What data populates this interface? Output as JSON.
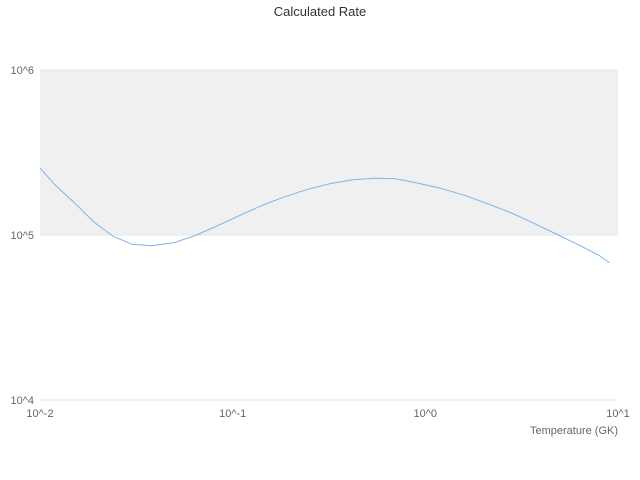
{
  "chart_data": {
    "type": "line",
    "title": "Calculated Rate",
    "xlabel": "Temperature (GK)",
    "ylabel": "",
    "xscale": "log",
    "yscale": "log",
    "xlim": [
      0.01,
      10
    ],
    "ylim": [
      10000,
      1000000
    ],
    "grid": "horizontal-only",
    "legend": "off",
    "background_color": "#ffffff",
    "gridline_color": "#e6e6e6",
    "xticks": [
      {
        "value": 0.01,
        "label": "10^-2"
      },
      {
        "value": 0.1,
        "label": "10^-1"
      },
      {
        "value": 1,
        "label": "10^0"
      },
      {
        "value": 10,
        "label": "10^1"
      }
    ],
    "yticks": [
      {
        "value": 10000,
        "label": "10^4"
      },
      {
        "value": 100000,
        "label": "10^5"
      },
      {
        "value": 1000000,
        "label": "10^6"
      }
    ],
    "plot_band": {
      "from": 100000,
      "to": 1000000,
      "color": "#f0f0f0"
    },
    "series": [
      {
        "name": "Calculated Rate",
        "color": "#7cb5ec",
        "points": [
          [
            0.01,
            255000
          ],
          [
            0.012,
            200000
          ],
          [
            0.015,
            158000
          ],
          [
            0.019,
            120000
          ],
          [
            0.024,
            98000
          ],
          [
            0.03,
            88000
          ],
          [
            0.038,
            86000
          ],
          [
            0.05,
            90000
          ],
          [
            0.065,
            100000
          ],
          [
            0.085,
            115000
          ],
          [
            0.11,
            132000
          ],
          [
            0.14,
            150000
          ],
          [
            0.18,
            168000
          ],
          [
            0.24,
            188000
          ],
          [
            0.32,
            205000
          ],
          [
            0.42,
            216000
          ],
          [
            0.55,
            221000
          ],
          [
            0.7,
            219000
          ],
          [
            0.9,
            207000
          ],
          [
            1.2,
            192000
          ],
          [
            1.6,
            174000
          ],
          [
            2.1,
            155000
          ],
          [
            2.8,
            136000
          ],
          [
            3.7,
            117000
          ],
          [
            4.9,
            100000
          ],
          [
            6.5,
            85000
          ],
          [
            8.0,
            75000
          ],
          [
            9.0,
            68000
          ]
        ]
      }
    ]
  }
}
